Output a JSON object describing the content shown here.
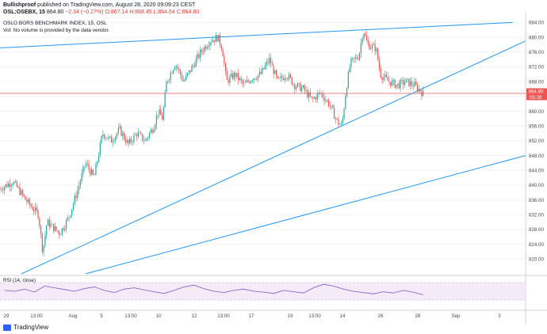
{
  "header": {
    "author": "Bullishproof",
    "published": "published on TradingView.com, August 28, 2020 09:09:23 CEST",
    "symbol": "OSL:OSEBX, 15",
    "last": "864.80",
    "change": "−2.34 (−0.27%)",
    "ohlc": "O:867.14 H:868.45 L:864.64 C:864.80"
  },
  "chart_data": {
    "type": "candlestick",
    "title": "OSLO BORS BENCHMARK INDEX, 15, OSL",
    "subtitle": "Vol: No volume is provided by the data vendor.",
    "ylim": [
      816,
      886
    ],
    "yticks": [
      820,
      824,
      828,
      832,
      836,
      840,
      844,
      848,
      852,
      856,
      860,
      864,
      868,
      872,
      876,
      880,
      884
    ],
    "xticks": [
      "29",
      "13:00",
      "Aug",
      "5",
      "13:00",
      "10",
      "12",
      "13:00",
      "17",
      "19",
      "13:00",
      "14",
      "26",
      "28",
      "Sep",
      "3"
    ],
    "price_label": "864.80",
    "countdown_label": "05:39",
    "indicator": {
      "name": "RSI (14, close)",
      "values": [
        52,
        50,
        55,
        48,
        62,
        58,
        54,
        50,
        56,
        60,
        52,
        47,
        55,
        58,
        53,
        49,
        45,
        52,
        60,
        64,
        56,
        50,
        47,
        52,
        55,
        50,
        48,
        45,
        52,
        49,
        46,
        58,
        66,
        62,
        55,
        50,
        47,
        44,
        49,
        46,
        52,
        48,
        42
      ]
    },
    "close_path": [
      {
        "x": 0,
        "y": 839
      },
      {
        "x": 3,
        "y": 841
      },
      {
        "x": 6,
        "y": 836
      },
      {
        "x": 9,
        "y": 832
      },
      {
        "x": 10,
        "y": 822
      },
      {
        "x": 11,
        "y": 830
      },
      {
        "x": 14,
        "y": 827
      },
      {
        "x": 16,
        "y": 831
      },
      {
        "x": 18,
        "y": 838
      },
      {
        "x": 20,
        "y": 846
      },
      {
        "x": 22,
        "y": 842
      },
      {
        "x": 24,
        "y": 854
      },
      {
        "x": 26,
        "y": 852
      },
      {
        "x": 28,
        "y": 855
      },
      {
        "x": 30,
        "y": 851
      },
      {
        "x": 32,
        "y": 854
      },
      {
        "x": 34,
        "y": 852
      },
      {
        "x": 36,
        "y": 856
      },
      {
        "x": 37,
        "y": 860
      },
      {
        "x": 38,
        "y": 858
      },
      {
        "x": 39,
        "y": 868
      },
      {
        "x": 41,
        "y": 873
      },
      {
        "x": 43,
        "y": 868
      },
      {
        "x": 45,
        "y": 872
      },
      {
        "x": 47,
        "y": 876
      },
      {
        "x": 49,
        "y": 879
      },
      {
        "x": 51,
        "y": 880
      },
      {
        "x": 52,
        "y": 877
      },
      {
        "x": 53,
        "y": 868
      },
      {
        "x": 55,
        "y": 870
      },
      {
        "x": 57,
        "y": 867
      },
      {
        "x": 59,
        "y": 869
      },
      {
        "x": 61,
        "y": 870
      },
      {
        "x": 63,
        "y": 874
      },
      {
        "x": 65,
        "y": 868
      },
      {
        "x": 67,
        "y": 870
      },
      {
        "x": 69,
        "y": 867
      },
      {
        "x": 71,
        "y": 866
      },
      {
        "x": 73,
        "y": 863
      },
      {
        "x": 75,
        "y": 865
      },
      {
        "x": 77,
        "y": 862
      },
      {
        "x": 79,
        "y": 857
      },
      {
        "x": 80,
        "y": 856
      },
      {
        "x": 81,
        "y": 866
      },
      {
        "x": 82,
        "y": 873
      },
      {
        "x": 84,
        "y": 875
      },
      {
        "x": 85,
        "y": 882
      },
      {
        "x": 86,
        "y": 878
      },
      {
        "x": 88,
        "y": 877
      },
      {
        "x": 89,
        "y": 870
      },
      {
        "x": 91,
        "y": 868
      },
      {
        "x": 93,
        "y": 867
      },
      {
        "x": 95,
        "y": 868
      },
      {
        "x": 97,
        "y": 867
      },
      {
        "x": 99,
        "y": 864.8
      }
    ],
    "trendlines": [
      {
        "p1": {
          "x": -2,
          "y": 877
        },
        "p2": {
          "x": 120,
          "y": 884
        }
      },
      {
        "p1": {
          "x": 5,
          "y": 816
        },
        "p2": {
          "x": 123,
          "y": 879
        }
      },
      {
        "p1": {
          "x": 20,
          "y": 816
        },
        "p2": {
          "x": 123,
          "y": 848
        }
      }
    ],
    "x_range": [
      0,
      123
    ]
  },
  "colors": {
    "up": "#26a69a",
    "down": "#ef5350",
    "trend": "#2196f3",
    "price_line": "#ef5350",
    "rsi": "#7e57c2",
    "rsi_band": "#f3e5f5",
    "grid": "#f0f3fa",
    "text": "#4a4a4a"
  },
  "footer": {
    "brand": "TradingView"
  }
}
